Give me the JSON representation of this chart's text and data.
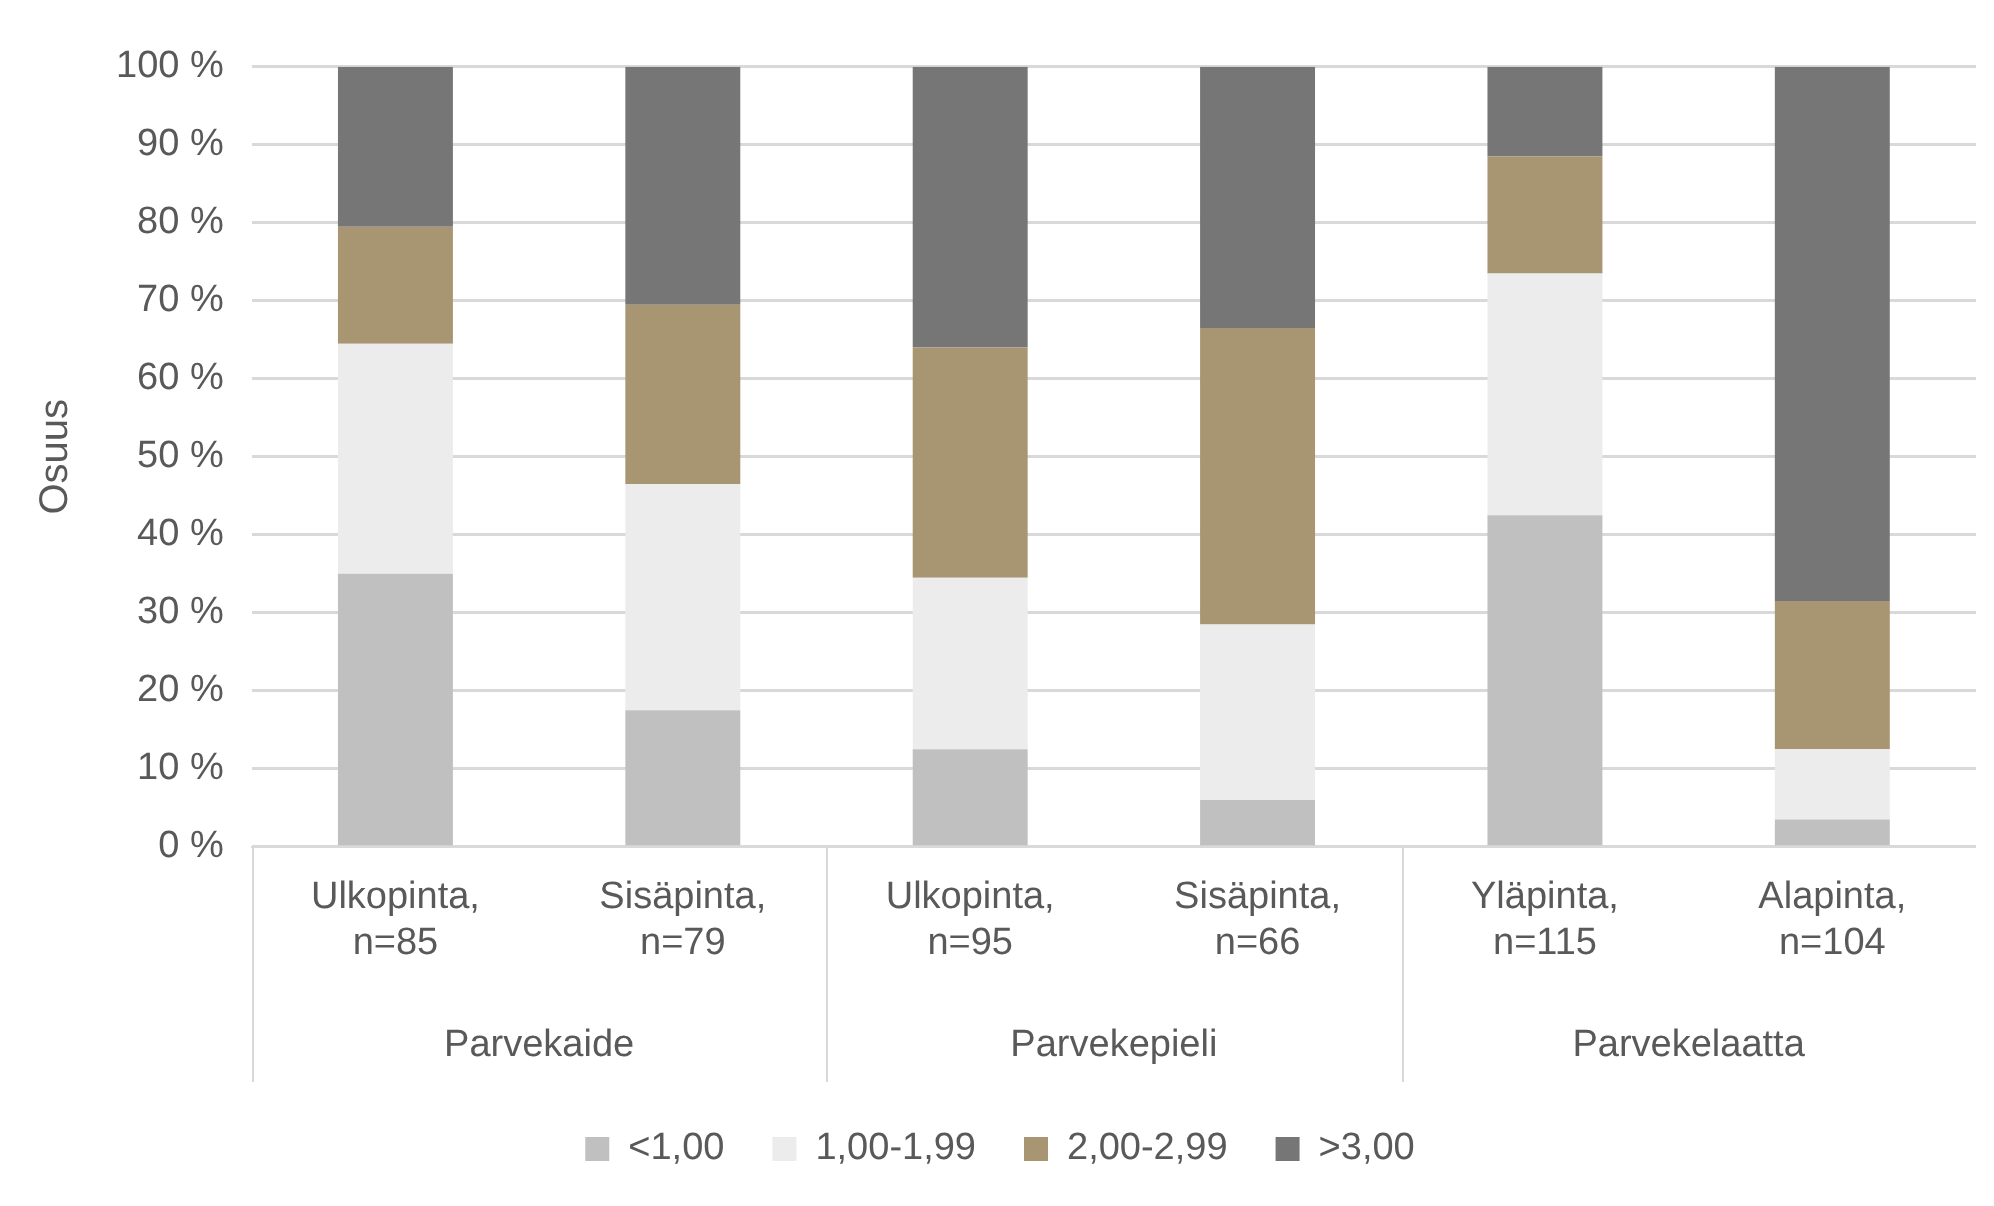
{
  "chart_data": {
    "type": "bar",
    "stacked": true,
    "ylabel": "Osuus",
    "categories": [
      "Ulkopinta, n=85",
      "Sisäpinta, n=79",
      "Ulkopinta, n=95",
      "Sisäpinta, n=66",
      "Yläpinta, n=115",
      "Alapinta, n=104"
    ],
    "annotations": [
      "Parvekaide",
      "Parvekepieli",
      "Parvekelaatta"
    ],
    "series": [
      {
        "name": "<1,00",
        "color": "#c0c0c0",
        "values": [
          35,
          17.5,
          12.5,
          6,
          42.5,
          3.5
        ]
      },
      {
        "name": "1,00-1,99",
        "color": "#ececec",
        "values": [
          29.5,
          29,
          22,
          22.5,
          31,
          9
        ]
      },
      {
        "name": "2,00-2,99",
        "color": "#a89572",
        "values": [
          15,
          23,
          29.5,
          38,
          15,
          19
        ]
      },
      {
        "name": ">3,00",
        "color": "#767676",
        "values": [
          20.5,
          30.5,
          36,
          33.5,
          11.5,
          68.5
        ]
      }
    ],
    "ylim": [
      0,
      100
    ],
    "yticks": [
      {
        "value": 0,
        "label": "0 %"
      },
      {
        "value": 10,
        "label": "10 %"
      },
      {
        "value": 20,
        "label": "20 %"
      },
      {
        "value": 30,
        "label": "30 %"
      },
      {
        "value": 40,
        "label": "40 %"
      },
      {
        "value": 50,
        "label": "50 %"
      },
      {
        "value": 60,
        "label": "60 %"
      },
      {
        "value": 70,
        "label": "70 %"
      },
      {
        "value": 80,
        "label": "80 %"
      },
      {
        "value": 90,
        "label": "90 %"
      },
      {
        "value": 100,
        "label": "100 %"
      }
    ],
    "grid": "y",
    "legend": "bottom"
  }
}
